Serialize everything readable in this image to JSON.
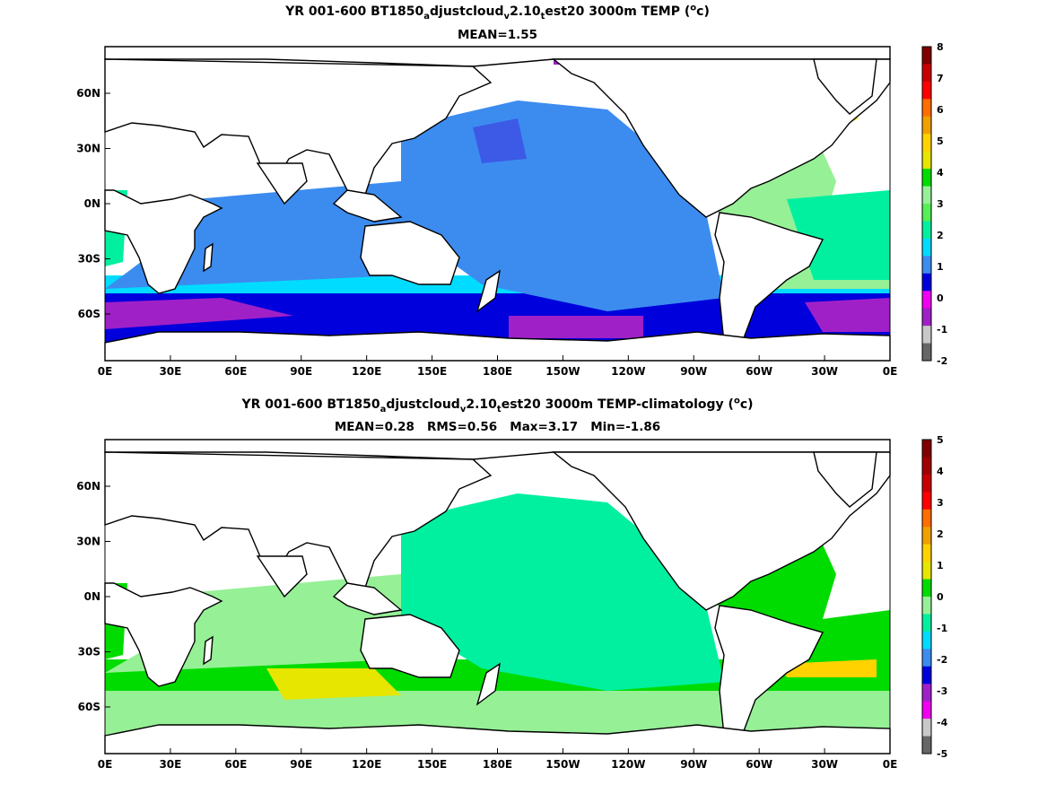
{
  "panels": [
    {
      "title": {
        "pre": "YR 001-600 BT1850",
        "s1": "a",
        "mid1": "djustcloud",
        "s2": "v",
        "mid2": "2.10",
        "s3": "t",
        "post": "est20 3000m TEMP (",
        "sup": "o",
        "end": "c)"
      },
      "stats": "MEAN=1.55",
      "colorbar": {
        "levels": [
          "-2",
          "-1",
          "0",
          "1",
          "2",
          "3",
          "4",
          "5",
          "6",
          "7",
          "8"
        ],
        "colors": [
          "#666666",
          "#c8c8c8",
          "#a020c8",
          "#f000f0",
          "#0000dc",
          "#3c8cf0",
          "#00dcff",
          "#00f0a0",
          "#55f055",
          "#96f096",
          "#00dc00",
          "#e6e600",
          "#ffd200",
          "#f0a000",
          "#ff6e00",
          "#ff0000",
          "#c80000",
          "#800000"
        ]
      }
    },
    {
      "title": {
        "pre": "YR 001-600 BT1850",
        "s1": "a",
        "mid1": "djustcloud",
        "s2": "v",
        "mid2": "2.10",
        "s3": "t",
        "post": "est20 3000m TEMP-climatology (",
        "sup": "o",
        "end": "c)"
      },
      "stats": "MEAN=0.28   RMS=0.56   Max=3.17   Min=-1.86",
      "colorbar": {
        "levels": [
          "-5",
          "-4",
          "-3",
          "-2",
          "-1",
          "0",
          "1",
          "2",
          "3",
          "4",
          "5"
        ],
        "colors": [
          "#666666",
          "#c8c8c8",
          "#f000f0",
          "#a020c8",
          "#0000dc",
          "#3c8cf0",
          "#00dcff",
          "#00f0a0",
          "#96f096",
          "#00dc00",
          "#e6e600",
          "#ffd200",
          "#f0a000",
          "#ff6e00",
          "#ff0000",
          "#c80000",
          "#a00000",
          "#800000"
        ]
      }
    }
  ],
  "axes": {
    "xticks": [
      "0E",
      "30E",
      "60E",
      "90E",
      "120E",
      "150E",
      "180E",
      "150W",
      "120W",
      "90W",
      "60W",
      "30W",
      "0E"
    ],
    "yticks": [
      "60N",
      "30N",
      "0N",
      "30S",
      "60S"
    ]
  }
}
